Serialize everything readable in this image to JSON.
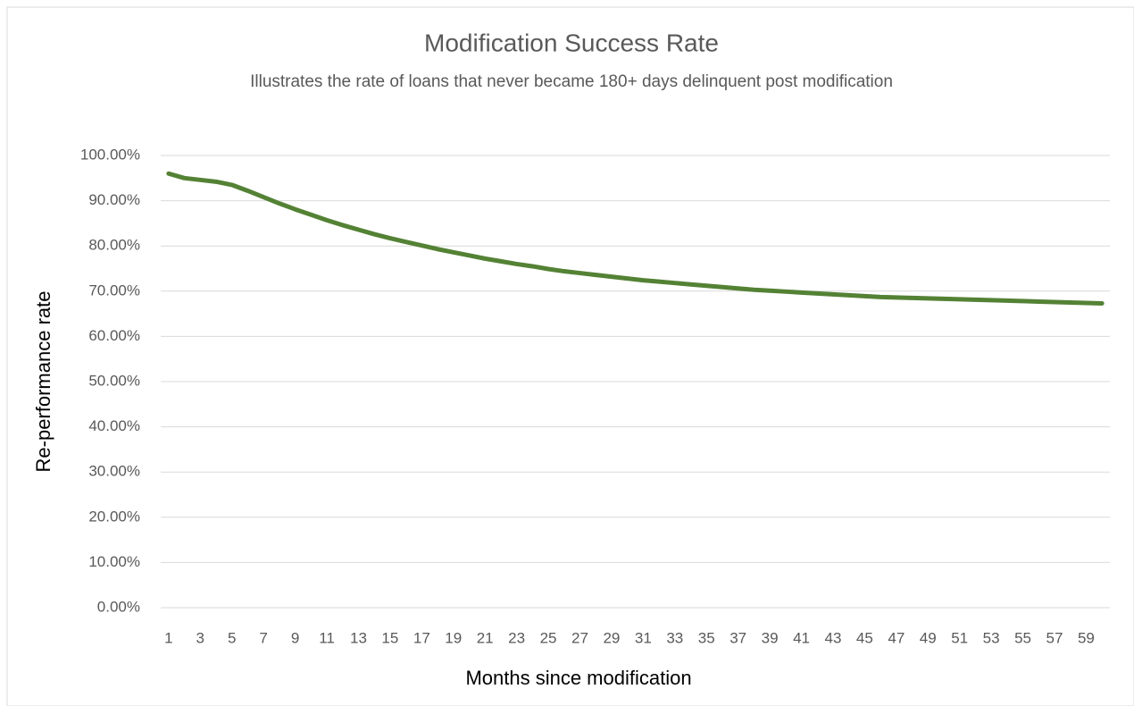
{
  "chart_data": {
    "type": "line",
    "title": "Modification Success Rate",
    "subtitle": "Illustrates the rate of loans that never became 180+ days delinquent post modification",
    "x_label": "Months since modification",
    "y_label": "Re-performance rate",
    "categories": [
      1,
      null,
      3,
      null,
      5,
      null,
      7,
      null,
      9,
      null,
      11,
      null,
      13,
      null,
      15,
      null,
      17,
      null,
      19,
      null,
      21,
      null,
      23,
      null,
      25,
      null,
      27,
      null,
      29,
      null,
      31,
      null,
      33,
      null,
      35,
      null,
      37,
      null,
      39,
      null,
      41,
      null,
      43,
      null,
      45,
      null,
      47,
      null,
      49,
      null,
      51,
      null,
      53,
      null,
      55,
      null,
      57,
      null,
      59,
      null
    ],
    "values": [
      96.0,
      95.0,
      94.6,
      94.2,
      93.5,
      92.2,
      90.8,
      89.4,
      88.1,
      86.9,
      85.7,
      84.6,
      83.6,
      82.6,
      81.7,
      80.9,
      80.1,
      79.3,
      78.6,
      77.9,
      77.2,
      76.6,
      76.0,
      75.5,
      74.9,
      74.4,
      74.0,
      73.6,
      73.2,
      72.8,
      72.4,
      72.1,
      71.8,
      71.5,
      71.2,
      70.9,
      70.6,
      70.3,
      70.1,
      69.9,
      69.7,
      69.5,
      69.3,
      69.1,
      68.9,
      68.7,
      68.6,
      68.5,
      68.4,
      68.3,
      68.2,
      68.1,
      68.0,
      67.9,
      67.8,
      67.7,
      67.6,
      67.5,
      67.4,
      67.3
    ],
    "color": "#548235",
    "ylim": [
      0,
      100
    ],
    "yticks": [
      {
        "value": 0,
        "label": "0.00%"
      },
      {
        "value": 10,
        "label": "10.00%"
      },
      {
        "value": 20,
        "label": "20.00%"
      },
      {
        "value": 30,
        "label": "30.00%"
      },
      {
        "value": 40,
        "label": "40.00%"
      },
      {
        "value": 50,
        "label": "50.00%"
      },
      {
        "value": 60,
        "label": "60.00%"
      },
      {
        "value": 70,
        "label": "70.00%"
      },
      {
        "value": 80,
        "label": "80.00%"
      },
      {
        "value": 90,
        "label": "90.00%"
      },
      {
        "value": 100,
        "label": "100.00%"
      }
    ],
    "grid": true
  }
}
